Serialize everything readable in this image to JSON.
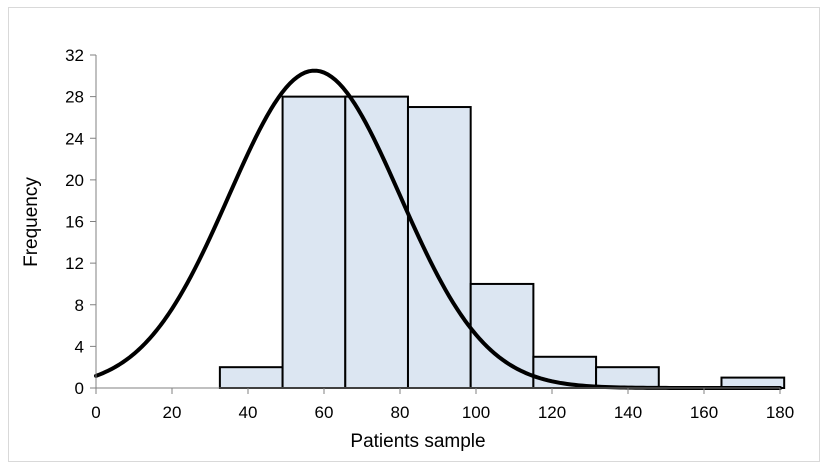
{
  "chart_data": {
    "type": "bar",
    "subtype": "histogram_with_fitted_normal_curve",
    "xlabel": "Patients sample",
    "ylabel": "Frequency",
    "xlim": [
      0,
      180
    ],
    "ylim": [
      0,
      32
    ],
    "x_ticks": [
      0,
      20,
      40,
      60,
      80,
      100,
      120,
      140,
      160,
      180
    ],
    "y_ticks": [
      0,
      4,
      8,
      12,
      16,
      20,
      24,
      28,
      32
    ],
    "bins": [
      {
        "start": 32.6,
        "end": 49.1,
        "count": 2
      },
      {
        "start": 49.1,
        "end": 65.6,
        "count": 28
      },
      {
        "start": 65.6,
        "end": 82.1,
        "count": 28
      },
      {
        "start": 82.1,
        "end": 98.6,
        "count": 27
      },
      {
        "start": 98.6,
        "end": 115.1,
        "count": 10
      },
      {
        "start": 115.1,
        "end": 131.6,
        "count": 3
      },
      {
        "start": 131.6,
        "end": 148.1,
        "count": 2
      },
      {
        "start": 148.1,
        "end": 164.6,
        "count": 0
      },
      {
        "start": 164.6,
        "end": 181.1,
        "count": 1
      }
    ],
    "curve": {
      "type": "normal",
      "peak_x": 57.5,
      "peak_y": 30.5,
      "sd": 22.5
    },
    "grid": false,
    "legend": "none",
    "colors": {
      "bar_fill": "#dce6f2",
      "bar_edge": "#000000",
      "curve": "#000000",
      "axis": "#808080"
    }
  }
}
